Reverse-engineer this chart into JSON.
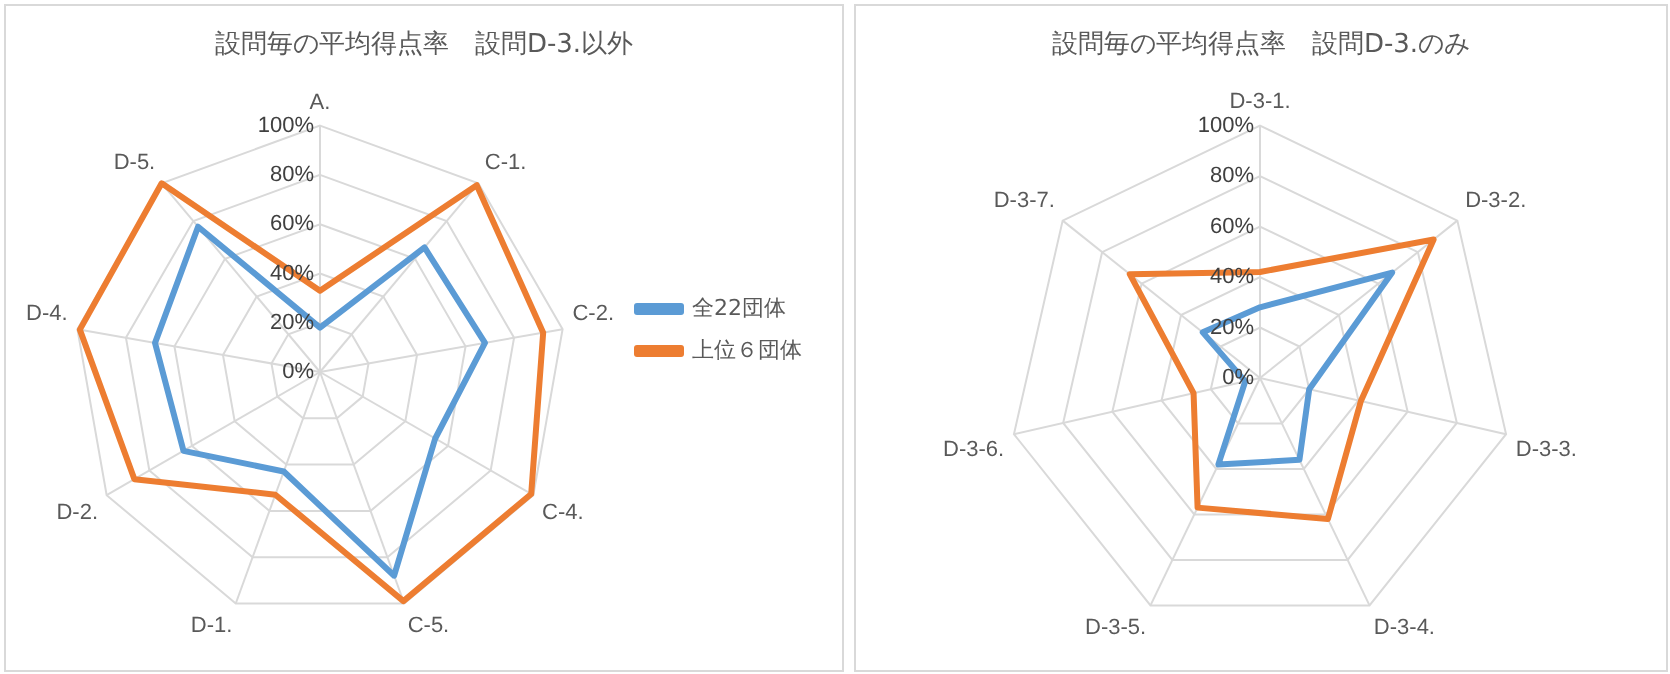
{
  "chart_data": [
    {
      "type": "radar",
      "title": "設問毎の平均得点率　設問D-3.以外",
      "categories": [
        "A.",
        "C-1.",
        "C-2.",
        "C-4.",
        "C-5.",
        "D-1.",
        "D-2.",
        "D-4.",
        "D-5."
      ],
      "series": [
        {
          "name": "全22団体",
          "color": "#5b9bd5",
          "values": [
            18,
            66,
            68,
            54,
            88,
            43,
            64,
            68,
            77
          ]
        },
        {
          "name": "上位６団体",
          "color": "#ed7d31",
          "values": [
            33,
            99,
            92,
            99,
            99,
            53,
            87,
            99,
            100
          ]
        }
      ],
      "ylim": [
        0,
        100
      ],
      "yticks": [
        {
          "value": 0,
          "label": "0%"
        },
        {
          "value": 20,
          "label": "20%"
        },
        {
          "value": 40,
          "label": "40%"
        },
        {
          "value": 60,
          "label": "60%"
        },
        {
          "value": 80,
          "label": "80%"
        },
        {
          "value": 100,
          "label": "100%"
        }
      ],
      "grid": true,
      "legend": "right",
      "marker": "none"
    },
    {
      "type": "radar",
      "title": "設問毎の平均得点率　設問D-3.のみ",
      "categories": [
        "D-3-1.",
        "D-3-2.",
        "D-3-3.",
        "D-3-4.",
        "D-3-5.",
        "D-3-6.",
        "D-3-7."
      ],
      "series": [
        {
          "color": "#5b9bd5",
          "values": [
            28,
            67,
            20,
            36,
            38,
            6,
            29
          ]
        },
        {
          "color": "#ed7d31",
          "values": [
            42,
            88,
            41,
            62,
            57,
            27,
            66
          ]
        }
      ],
      "ylim": [
        0,
        100
      ],
      "yticks": [
        {
          "value": 0,
          "label": "0%"
        },
        {
          "value": 20,
          "label": "20%"
        },
        {
          "value": 40,
          "label": "40%"
        },
        {
          "value": 60,
          "label": "60%"
        },
        {
          "value": 80,
          "label": "80%"
        },
        {
          "value": 100,
          "label": "100%"
        }
      ],
      "grid": true,
      "marker": "none"
    }
  ]
}
